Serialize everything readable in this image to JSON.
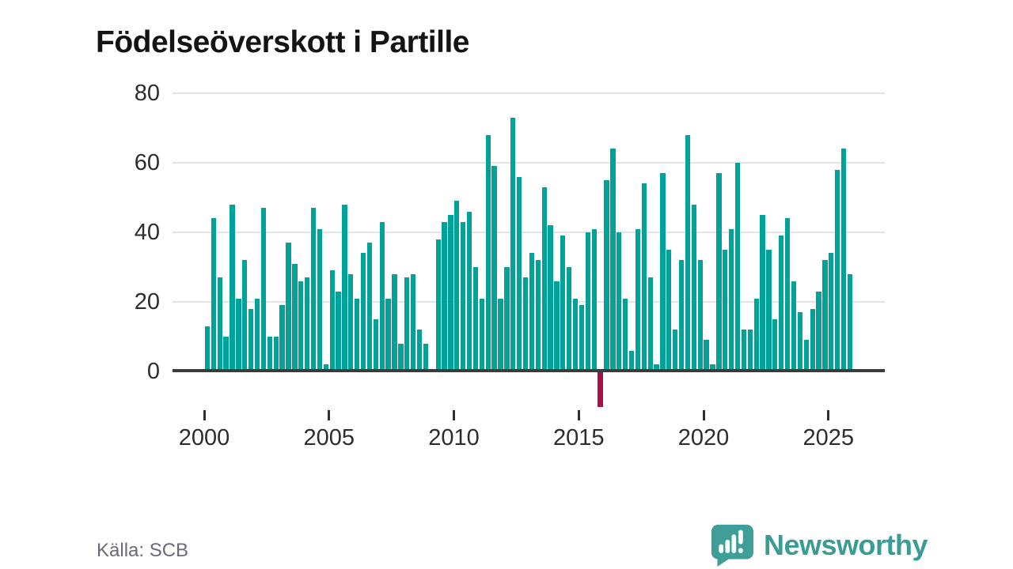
{
  "title": "Födelseöverskott i Partille",
  "source": {
    "label": "Källa: SCB"
  },
  "branding": {
    "name": "Newsworthy",
    "icon": "speech-bubble-bar-chart-icon",
    "color": "#3a9c93"
  },
  "colors": {
    "bar": "#00a29a",
    "bar_negative": "#a50f4b",
    "gridline": "#e4e4e4",
    "axis": "#3b3b3b",
    "tick_text": "#2d2d2d",
    "muted_text": "#6b6b75"
  },
  "chart_data": {
    "type": "bar",
    "title": "Födelseöverskott i Partille",
    "frequency": "quarterly",
    "start": "2000Q1",
    "end": "2025Q4",
    "values": [
      13,
      44,
      27,
      10,
      48,
      21,
      32,
      18,
      21,
      47,
      10,
      10,
      19,
      37,
      31,
      26,
      27,
      47,
      41,
      2,
      29,
      23,
      48,
      28,
      21,
      34,
      37,
      15,
      43,
      21,
      28,
      8,
      27,
      28,
      12,
      8,
      0,
      38,
      43,
      45,
      49,
      43,
      46,
      30,
      21,
      68,
      59,
      21,
      30,
      73,
      56,
      27,
      34,
      32,
      53,
      42,
      26,
      39,
      30,
      21,
      19,
      40,
      41,
      -10,
      55,
      64,
      40,
      21,
      6,
      41,
      54,
      27,
      2,
      57,
      35,
      12,
      32,
      68,
      48,
      32,
      9,
      2,
      57,
      35,
      41,
      60,
      12,
      12,
      21,
      45,
      35,
      15,
      39,
      44,
      26,
      17,
      9,
      18,
      23,
      32,
      34,
      58,
      64,
      28
    ],
    "ylim": [
      -10,
      80
    ],
    "yticks": [
      0,
      20,
      40,
      60,
      80
    ],
    "xticks": [
      2000,
      2005,
      2010,
      2015,
      2020,
      2025
    ],
    "grid": true,
    "legend": false,
    "bar_color": "#00a29a",
    "negative_bar_color": "#a50f4b"
  }
}
